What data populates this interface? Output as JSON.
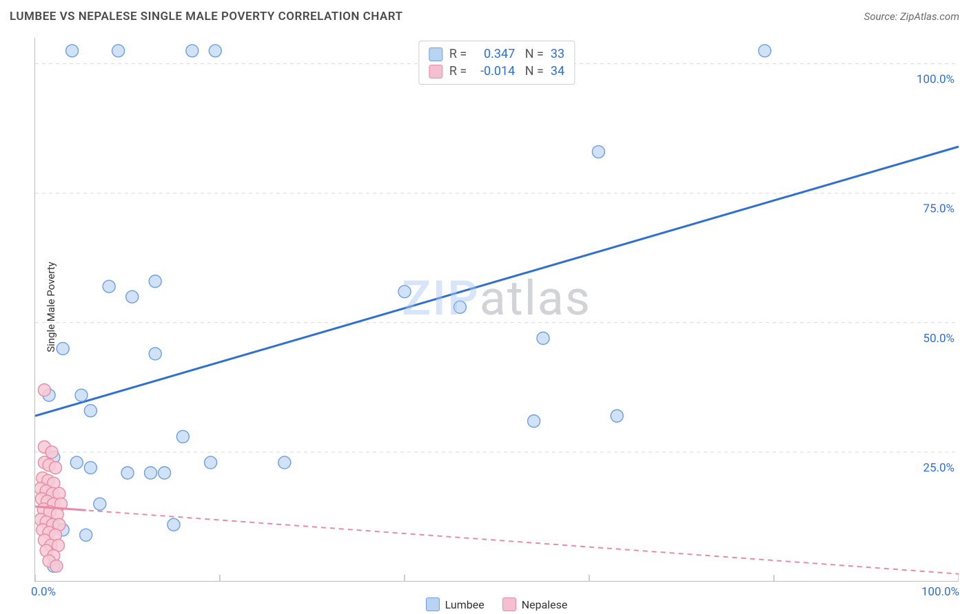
{
  "title": "LUMBEE VS NEPALESE SINGLE MALE POVERTY CORRELATION CHART",
  "source": "Source: ZipAtlas.com",
  "ylabel": "Single Male Poverty",
  "watermark_left": "ZIP",
  "watermark_right": "atlas",
  "chart": {
    "type": "scatter",
    "xlim": [
      0,
      100
    ],
    "ylim": [
      0,
      105
    ],
    "xticks": [
      0,
      20,
      40,
      60,
      80,
      100
    ],
    "yticks": [
      25,
      50,
      75,
      100
    ],
    "ytick_labels": [
      "25.0%",
      "50.0%",
      "75.0%",
      "100.0%"
    ],
    "x_axis_end_labels": [
      "0.0%",
      "100.0%"
    ],
    "grid_color": "#d9d9d9",
    "tick_color": "#bdbdbd",
    "background_color": "#ffffff",
    "axis_label_color": "#2f6fd0",
    "marker_radius": 9,
    "marker_stroke_width": 1.4,
    "series": [
      {
        "name": "Lumbee",
        "fill": "#c9dcf5",
        "stroke": "#6a9fe3",
        "legend_fill": "#b9d3f2",
        "R": "0.347",
        "N": "33",
        "trend": {
          "x1": 0,
          "y1": 32,
          "x2": 100,
          "y2": 84,
          "stroke": "#2f6fd0",
          "width": 3,
          "dash": ""
        },
        "points": [
          [
            4,
            102.5
          ],
          [
            9,
            102.5
          ],
          [
            17,
            102.5
          ],
          [
            19.5,
            102.5
          ],
          [
            79,
            102.5
          ],
          [
            61,
            83
          ],
          [
            8,
            57
          ],
          [
            10.5,
            55
          ],
          [
            13,
            58
          ],
          [
            40,
            56
          ],
          [
            46,
            53
          ],
          [
            3,
            45
          ],
          [
            13,
            44
          ],
          [
            55,
            47
          ],
          [
            1.5,
            36
          ],
          [
            5,
            36
          ],
          [
            6,
            33
          ],
          [
            54,
            31
          ],
          [
            63,
            32
          ],
          [
            16,
            28
          ],
          [
            2,
            24
          ],
          [
            4.5,
            23
          ],
          [
            6,
            22
          ],
          [
            10,
            21
          ],
          [
            12.5,
            21
          ],
          [
            14,
            21
          ],
          [
            19,
            23
          ],
          [
            27,
            23
          ],
          [
            7,
            15
          ],
          [
            15,
            11
          ],
          [
            3,
            10
          ],
          [
            5.5,
            9
          ],
          [
            2,
            3
          ]
        ]
      },
      {
        "name": "Nepalese",
        "fill": "#f6c9d6",
        "stroke": "#e78aa5",
        "legend_fill": "#f4bfd0",
        "R": "-0.014",
        "N": "34",
        "trend": {
          "x1": 0,
          "y1": 14.5,
          "x2": 100,
          "y2": 1.5,
          "stroke": "#e78aa5",
          "width": 2,
          "dash": "7 6"
        },
        "points": [
          [
            1,
            37
          ],
          [
            1,
            26
          ],
          [
            1.8,
            25
          ],
          [
            1,
            23
          ],
          [
            1.5,
            22.5
          ],
          [
            2.2,
            22
          ],
          [
            0.8,
            20
          ],
          [
            1.4,
            19.5
          ],
          [
            2,
            19
          ],
          [
            0.6,
            18
          ],
          [
            1.2,
            17.5
          ],
          [
            1.9,
            17
          ],
          [
            2.6,
            17
          ],
          [
            0.7,
            16
          ],
          [
            1.3,
            15.5
          ],
          [
            2,
            15
          ],
          [
            2.8,
            15
          ],
          [
            0.9,
            14
          ],
          [
            1.6,
            13.5
          ],
          [
            2.4,
            13
          ],
          [
            0.6,
            12
          ],
          [
            1.2,
            11.5
          ],
          [
            1.9,
            11
          ],
          [
            2.6,
            11
          ],
          [
            0.8,
            10
          ],
          [
            1.5,
            9.5
          ],
          [
            2.2,
            9
          ],
          [
            1,
            8
          ],
          [
            1.7,
            7
          ],
          [
            2.5,
            7
          ],
          [
            1.2,
            6
          ],
          [
            2,
            5
          ],
          [
            1.5,
            4
          ],
          [
            2.3,
            3
          ]
        ]
      }
    ]
  }
}
